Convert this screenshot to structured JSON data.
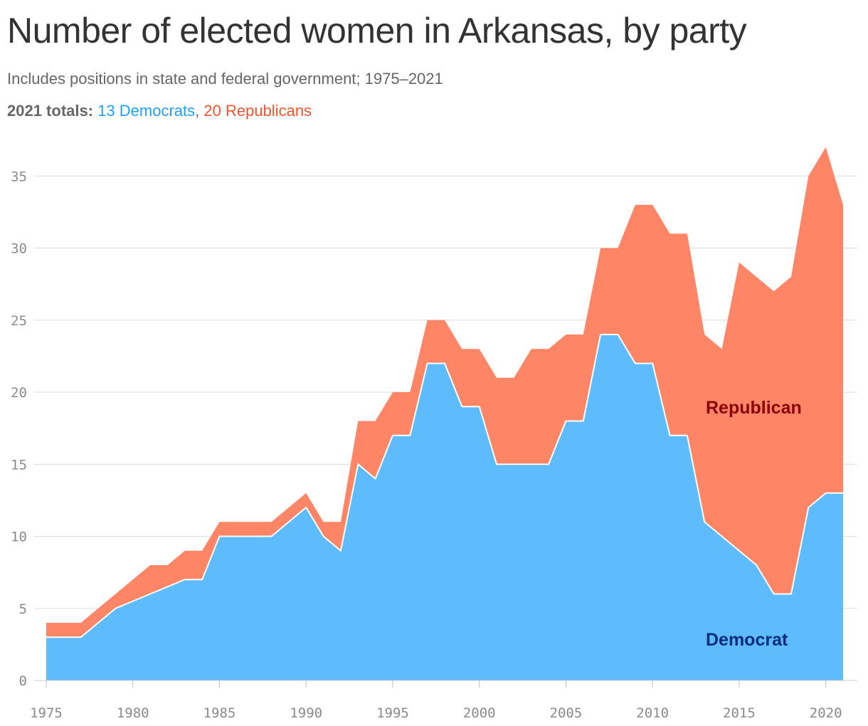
{
  "header": {
    "title": "Number of elected women in Arkansas, by party",
    "subtitle": "Includes positions in state and federal government; 1975–2021",
    "totals_label": "2021 totals:",
    "totals_dem": "13 Democrats",
    "totals_sep": ",",
    "totals_rep": "20 Republicans"
  },
  "colors": {
    "democrat": "#5ebcfc",
    "republican": "#ff8567",
    "democrat_label": "#002b7a",
    "republican_label": "#8b0000"
  },
  "chart_data": {
    "type": "area",
    "stacked": true,
    "x": [
      1975,
      1976,
      1977,
      1978,
      1979,
      1980,
      1981,
      1982,
      1983,
      1984,
      1985,
      1986,
      1987,
      1988,
      1989,
      1990,
      1991,
      1992,
      1993,
      1994,
      1995,
      1996,
      1997,
      1998,
      1999,
      2000,
      2001,
      2002,
      2003,
      2004,
      2005,
      2006,
      2007,
      2008,
      2009,
      2010,
      2011,
      2012,
      2013,
      2014,
      2015,
      2016,
      2017,
      2018,
      2019,
      2020,
      2021
    ],
    "series": [
      {
        "name": "Democrat",
        "values": [
          3,
          3,
          3,
          4,
          5,
          5.5,
          6,
          6.5,
          7,
          7,
          10,
          10,
          10,
          10,
          11,
          12,
          10,
          9,
          15,
          14,
          17,
          17,
          22,
          22,
          19,
          19,
          15,
          15,
          15,
          15,
          18,
          18,
          24,
          24,
          22,
          22,
          17,
          17,
          11,
          10,
          9,
          8,
          6,
          6,
          12,
          13,
          13
        ]
      },
      {
        "name": "Republican",
        "values": [
          1,
          1,
          1,
          1,
          1,
          1.5,
          2,
          1.5,
          2,
          2,
          1,
          1,
          1,
          1,
          1,
          1,
          1,
          2,
          3,
          4,
          3,
          3,
          3,
          3,
          4,
          4,
          6,
          6,
          8,
          8,
          6,
          6,
          6,
          6,
          11,
          11,
          14,
          14,
          13,
          13,
          20,
          20,
          21,
          22,
          23,
          24,
          20
        ]
      }
    ],
    "xlim": [
      1975,
      2021
    ],
    "ylim": [
      0,
      37
    ],
    "x_ticks": [
      1975,
      1980,
      1985,
      1990,
      1995,
      2000,
      2005,
      2010,
      2015,
      2020
    ],
    "y_ticks": [
      0,
      5,
      10,
      15,
      20,
      25,
      30,
      35
    ],
    "grid": true,
    "xlabel": "",
    "ylabel": ""
  }
}
